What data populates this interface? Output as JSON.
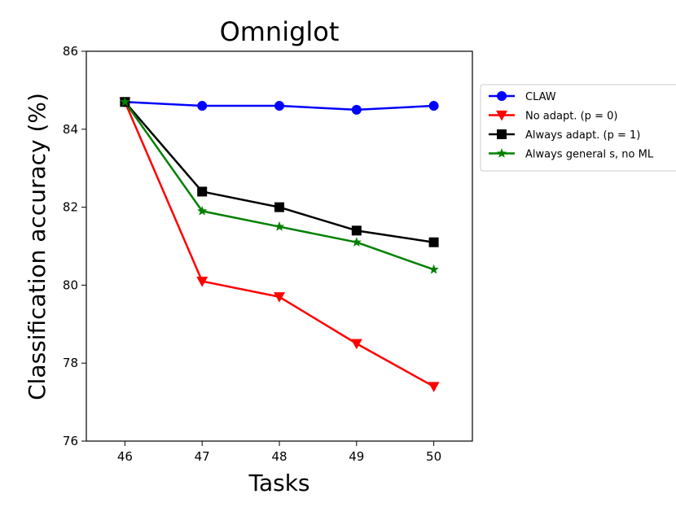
{
  "chart_data": {
    "type": "line",
    "title": "Omniglot",
    "xlabel": "Tasks",
    "ylabel": "Classification accuracy (%)",
    "x": [
      46,
      47,
      48,
      49,
      50
    ],
    "xlim": [
      45.5,
      50.5
    ],
    "ylim": [
      76,
      86
    ],
    "xticks": [
      "46",
      "47",
      "48",
      "49",
      "50"
    ],
    "yticks": [
      "76",
      "78",
      "80",
      "82",
      "84",
      "86"
    ],
    "grid": false,
    "legend_position": "outside-right",
    "series": [
      {
        "name": "CLAW",
        "color": "#0000ff",
        "marker": "circle",
        "values": [
          84.7,
          84.6,
          84.6,
          84.5,
          84.6
        ]
      },
      {
        "name": "No adapt. (p = 0)",
        "color": "#ff0000",
        "marker": "triangle-down",
        "values": [
          84.7,
          80.1,
          79.7,
          78.5,
          77.4
        ]
      },
      {
        "name": "Always adapt. (p = 1)",
        "color": "#000000",
        "marker": "square",
        "values": [
          84.7,
          82.4,
          82.0,
          81.4,
          81.1
        ]
      },
      {
        "name": "Always general s, no ML",
        "color": "#008000",
        "marker": "star",
        "values": [
          84.7,
          81.9,
          81.5,
          81.1,
          80.4
        ]
      }
    ]
  }
}
